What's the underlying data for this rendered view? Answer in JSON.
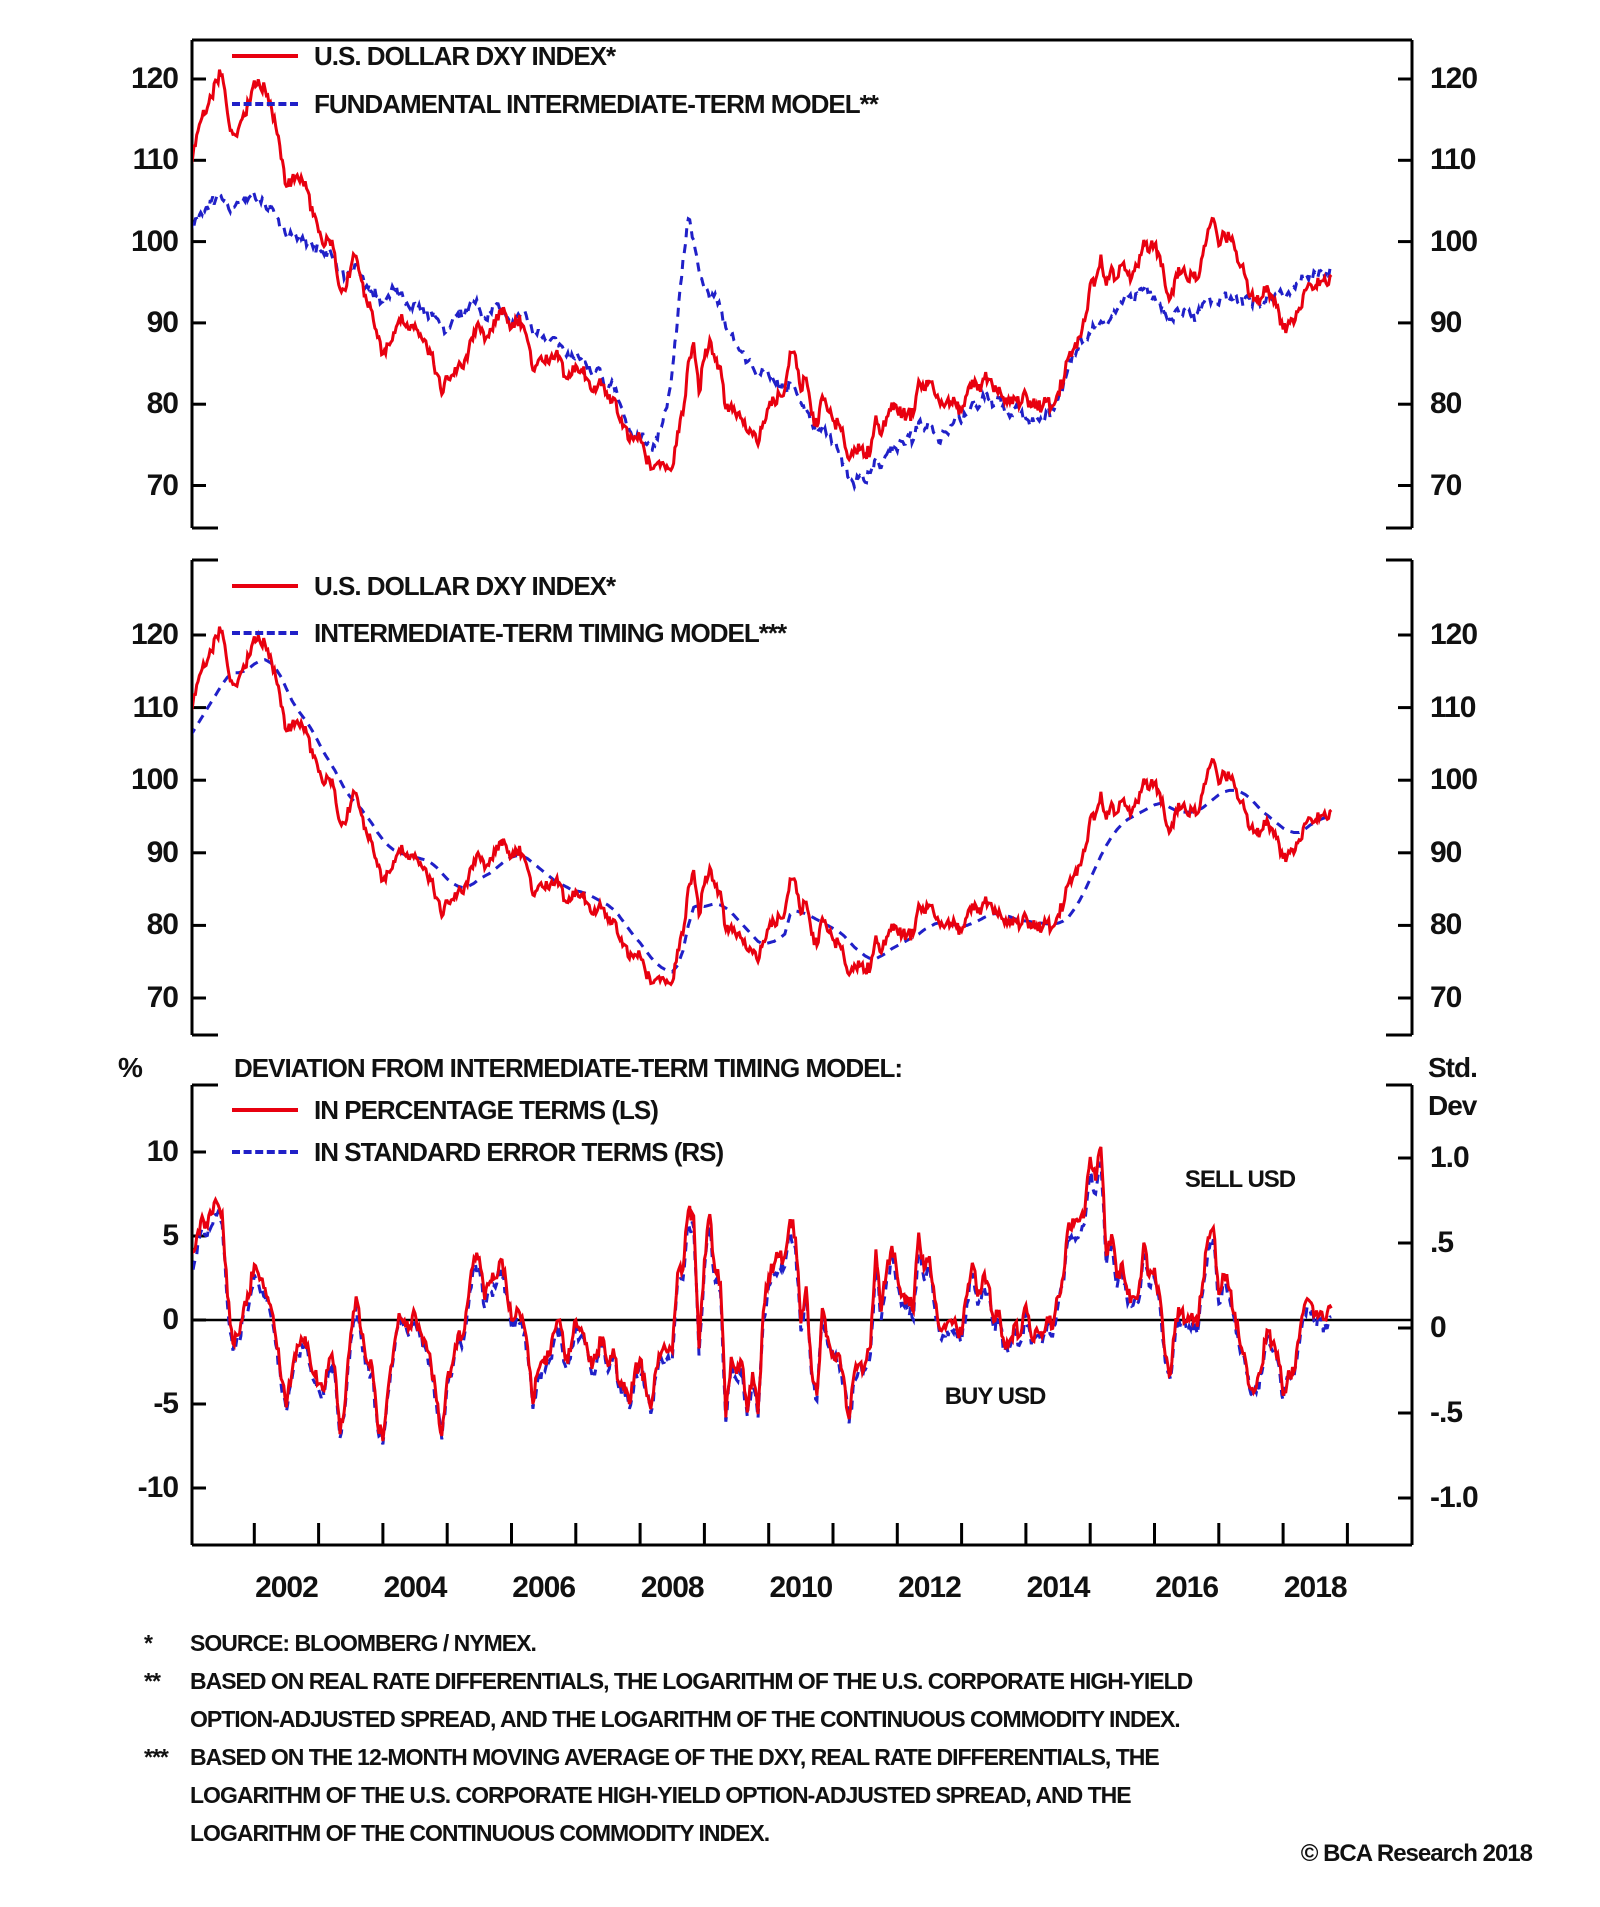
{
  "figure": {
    "colors": {
      "dxy_red": "#e8000f",
      "model_blue": "#2020c8",
      "axis_black": "#000000",
      "text_black": "#111111",
      "background": "#ffffff"
    },
    "copyright": "© BCA Research 2018",
    "footnote_lines": [
      {
        "marker": "*",
        "text": "SOURCE: BLOOMBERG / NYMEX."
      },
      {
        "marker": "**",
        "text": "BASED ON REAL RATE DIFFERENTIALS, THE LOGARITHM OF THE U.S. CORPORATE HIGH-YIELD"
      },
      {
        "marker": "",
        "text": "OPTION-ADJUSTED SPREAD, AND THE LOGARITHM OF THE CONTINUOUS COMMODITY INDEX."
      },
      {
        "marker": "***",
        "text": "BASED ON THE 12-MONTH MOVING AVERAGE OF THE DXY, REAL RATE DIFFERENTIALS, THE"
      },
      {
        "marker": "",
        "text": "LOGARITHM OF THE U.S. CORPORATE HIGH-YIELD OPTION-ADJUSTED SPREAD, AND THE"
      },
      {
        "marker": "",
        "text": "LOGARITHM OF THE CONTINUOUS COMMODITY INDEX."
      }
    ]
  },
  "x_axis": {
    "start_year": 2001.0,
    "step_months": 1,
    "tick_years": [
      2002,
      2003,
      2004,
      2005,
      2006,
      2007,
      2008,
      2009,
      2010,
      2011,
      2012,
      2013,
      2014,
      2015,
      2016,
      2017,
      2018,
      2019
    ],
    "label_years": [
      "2002",
      "2004",
      "2006",
      "2008",
      "2010",
      "2012",
      "2014",
      "2016",
      "2018"
    ]
  },
  "chart_data": [
    {
      "panel": "top",
      "type": "line",
      "legend": [
        {
          "label": "U.S. DOLLAR DXY INDEX*",
          "color": "#e8000f",
          "style": "solid"
        },
        {
          "label": "FUNDAMENTAL INTERMEDIATE-TERM MODEL**",
          "color": "#2020c8",
          "style": "dashed"
        }
      ],
      "ylim": [
        65,
        125
      ],
      "y_ticks": [
        120,
        110,
        100,
        90,
        80,
        70
      ],
      "series": [
        {
          "name": "dxy_index",
          "values": [
            109.5,
            111.8,
            114.8,
            115.8,
            117.8,
            119.8,
            120.5,
            115.8,
            113.2,
            113.8,
            115.8,
            117.0,
            119.8,
            119.2,
            118.8,
            117.2,
            114.2,
            110.2,
            106.8,
            107.5,
            108.2,
            107.5,
            106.2,
            103.2,
            101.2,
            99.4,
            100.2,
            98.6,
            94.2,
            94.0,
            96.8,
            98.2,
            95.2,
            92.6,
            91.4,
            88.2,
            86.2,
            87.4,
            88.8,
            90.4,
            89.8,
            89.2,
            89.8,
            88.6,
            87.8,
            86.2,
            83.8,
            81.2,
            83.4,
            83.6,
            84.6,
            84.4,
            86.6,
            89.0,
            89.6,
            87.8,
            89.2,
            90.0,
            91.6,
            91.0,
            89.4,
            90.2,
            89.8,
            87.8,
            84.2,
            85.4,
            85.2,
            85.0,
            85.6,
            85.8,
            83.4,
            83.4,
            84.8,
            84.2,
            83.2,
            81.6,
            82.0,
            82.4,
            80.6,
            80.8,
            78.4,
            77.4,
            75.4,
            76.0,
            75.8,
            73.6,
            72.0,
            72.6,
            72.8,
            72.4,
            72.2,
            76.6,
            78.8,
            85.2,
            87.6,
            81.4,
            85.6,
            88.0,
            85.4,
            84.6,
            79.4,
            80.0,
            78.4,
            78.2,
            76.6,
            76.2,
            75.0,
            77.8,
            79.6,
            80.4,
            81.2,
            81.8,
            86.4,
            86.0,
            81.6,
            83.2,
            78.8,
            77.2,
            81.0,
            79.2,
            78.0,
            77.6,
            75.9,
            73.2,
            74.6,
            74.4,
            73.8,
            74.2,
            78.6,
            76.2,
            78.4,
            80.2,
            79.2,
            78.8,
            79.0,
            78.8,
            82.9,
            81.8,
            82.8,
            81.2,
            79.9,
            80.0,
            80.2,
            79.8,
            79.2,
            81.2,
            83.0,
            81.7,
            83.1,
            83.1,
            81.5,
            82.1,
            80.2,
            80.2,
            80.7,
            80.0,
            81.3,
            79.7,
            80.0,
            79.5,
            80.4,
            79.8,
            81.4,
            82.7,
            85.9,
            86.9,
            88.3,
            90.3,
            94.8,
            95.3,
            98.4,
            94.6,
            96.9,
            95.5,
            97.2,
            96.0,
            96.3,
            96.9,
            100.2,
            98.7,
            99.6,
            98.2,
            94.6,
            93.1,
            95.9,
            96.1,
            95.5,
            96.0,
            95.4,
            98.3,
            101.5,
            102.8,
            99.5,
            101.1,
            100.4,
            99.0,
            96.9,
            95.6,
            93.4,
            92.7,
            93.1,
            94.6,
            93.3,
            92.1,
            89.2,
            90.2,
            89.9,
            91.8,
            94.0,
            94.8,
            94.5,
            95.1,
            94.9,
            95.9
          ]
        },
        {
          "name": "fundamental_intermediate_term_model",
          "values": [
            101.0,
            102.8,
            103.6,
            104.2,
            105.0,
            105.6,
            105.2,
            104.6,
            104.2,
            104.8,
            105.2,
            105.4,
            105.8,
            105.2,
            104.6,
            104.2,
            103.2,
            101.8,
            100.6,
            100.8,
            100.2,
            100.6,
            99.8,
            99.2,
            99.6,
            98.4,
            99.2,
            97.8,
            96.4,
            95.8,
            96.6,
            97.2,
            95.8,
            94.6,
            93.8,
            93.2,
            92.6,
            93.4,
            94.2,
            93.6,
            92.8,
            91.8,
            92.4,
            91.6,
            90.8,
            91.4,
            90.6,
            89.8,
            89.2,
            90.4,
            91.2,
            90.6,
            91.8,
            92.6,
            91.8,
            90.6,
            91.4,
            92.2,
            91.6,
            90.8,
            89.6,
            90.8,
            91.4,
            90.2,
            88.6,
            89.2,
            88.4,
            87.6,
            88.2,
            87.4,
            86.2,
            85.4,
            86.2,
            85.6,
            84.8,
            83.6,
            84.4,
            83.2,
            81.8,
            82.6,
            80.4,
            78.6,
            76.8,
            75.6,
            76.4,
            75.2,
            74.4,
            75.8,
            77.2,
            79.6,
            84.2,
            90.5,
            97.8,
            102.8,
            100.2,
            96.4,
            94.2,
            92.8,
            93.6,
            91.8,
            89.4,
            88.6,
            87.2,
            86.4,
            85.2,
            84.6,
            83.4,
            84.2,
            83.6,
            82.8,
            82.2,
            81.4,
            82.6,
            81.8,
            80.2,
            79.4,
            77.8,
            76.4,
            77.2,
            76.6,
            75.4,
            74.2,
            72.6,
            70.8,
            69.8,
            71.2,
            70.4,
            71.6,
            73.4,
            72.2,
            73.8,
            74.6,
            74.2,
            75.4,
            76.2,
            75.6,
            77.8,
            76.8,
            77.6,
            76.4,
            75.2,
            76.6,
            77.4,
            78.2,
            77.6,
            78.8,
            80.2,
            79.4,
            81.2,
            80.6,
            79.8,
            80.8,
            79.2,
            78.4,
            79.6,
            78.8,
            78.2,
            77.6,
            78.4,
            77.8,
            78.8,
            79.4,
            80.6,
            82.4,
            84.8,
            86.2,
            87.4,
            88.2,
            88.6,
            89.4,
            90.2,
            89.6,
            90.8,
            91.6,
            92.4,
            93.2,
            92.6,
            93.4,
            94.2,
            93.8,
            93.2,
            92.4,
            91.2,
            90.4,
            91.6,
            90.8,
            91.4,
            90.6,
            91.2,
            92.4,
            93.2,
            92.6,
            92.2,
            93.4,
            92.8,
            93.6,
            92.6,
            93.2,
            92.4,
            93.0,
            92.2,
            93.4,
            92.8,
            93.6,
            93.2,
            93.8,
            94.4,
            94.8,
            95.4,
            96.0,
            96.2,
            96.4,
            96.0,
            96.6
          ]
        }
      ]
    },
    {
      "panel": "middle",
      "type": "line",
      "legend": [
        {
          "label": "U.S. DOLLAR DXY INDEX*",
          "color": "#e8000f",
          "style": "solid"
        },
        {
          "label": "INTERMEDIATE-TERM TIMING MODEL***",
          "color": "#2020c8",
          "style": "dashed"
        }
      ],
      "ylim": [
        65,
        130
      ],
      "y_ticks": [
        120,
        110,
        100,
        90,
        80,
        70
      ],
      "series": [
        {
          "name": "dxy_index",
          "ref_panel": 0,
          "ref_series": 0
        },
        {
          "name": "intermediate_term_timing_model",
          "values": [
            106.0,
            107.2,
            108.4,
            109.6,
            110.8,
            112.0,
            113.2,
            114.2,
            114.8,
            114.8,
            115.0,
            115.4,
            116.0,
            116.4,
            116.6,
            116.2,
            115.4,
            114.2,
            112.6,
            111.0,
            109.8,
            108.8,
            107.8,
            106.6,
            105.2,
            103.8,
            102.6,
            101.4,
            100.0,
            98.6,
            97.6,
            96.8,
            96.0,
            95.0,
            94.0,
            92.8,
            91.8,
            91.0,
            90.4,
            90.0,
            89.8,
            89.6,
            89.4,
            89.2,
            89.0,
            88.6,
            88.0,
            87.2,
            86.4,
            85.8,
            85.4,
            85.2,
            85.4,
            85.8,
            86.4,
            86.8,
            87.2,
            87.8,
            88.4,
            89.0,
            89.4,
            89.6,
            89.6,
            89.2,
            88.6,
            88.0,
            87.4,
            86.8,
            86.2,
            85.8,
            85.4,
            85.0,
            84.8,
            84.6,
            84.4,
            84.0,
            83.6,
            83.2,
            82.8,
            82.2,
            81.4,
            80.4,
            79.4,
            78.4,
            77.6,
            76.6,
            75.6,
            74.8,
            74.2,
            73.8,
            73.6,
            74.5,
            76.5,
            80.0,
            82.5,
            82.8,
            82.6,
            82.8,
            83.0,
            82.8,
            82.4,
            81.8,
            81.0,
            80.2,
            79.4,
            78.6,
            77.8,
            77.4,
            77.6,
            77.8,
            78.2,
            78.8,
            81.5,
            82.0,
            81.8,
            81.6,
            81.2,
            80.8,
            80.4,
            80.0,
            79.6,
            79.2,
            78.6,
            77.8,
            77.0,
            76.4,
            75.8,
            75.4,
            75.4,
            75.8,
            76.2,
            76.8,
            77.2,
            77.6,
            78.0,
            78.4,
            78.8,
            79.4,
            79.8,
            80.2,
            80.4,
            80.4,
            80.2,
            80.0,
            79.9,
            80.0,
            80.3,
            80.6,
            81.0,
            81.4,
            81.6,
            81.6,
            81.4,
            81.2,
            80.9,
            80.7,
            80.6,
            80.5,
            80.4,
            80.3,
            80.2,
            80.2,
            80.3,
            80.6,
            81.2,
            82.2,
            83.4,
            84.8,
            86.4,
            88.0,
            89.6,
            91.0,
            92.2,
            93.2,
            94.0,
            94.6,
            95.0,
            95.4,
            95.8,
            96.2,
            96.6,
            96.8,
            96.6,
            96.2,
            95.8,
            95.6,
            95.6,
            95.6,
            95.8,
            96.2,
            96.8,
            97.4,
            98.0,
            98.4,
            98.6,
            98.6,
            98.4,
            98.0,
            97.4,
            96.6,
            95.8,
            95.2,
            94.6,
            94.0,
            93.4,
            93.0,
            92.8,
            92.8,
            93.2,
            93.8,
            94.2,
            94.6,
            94.9,
            95.2
          ]
        }
      ]
    },
    {
      "panel": "bottom",
      "type": "line",
      "legend_title": "DEVIATION FROM INTERMEDIATE-TERM TIMING MODEL:",
      "legend": [
        {
          "label": "IN PERCENTAGE TERMS (LS)",
          "color": "#e8000f",
          "style": "solid"
        },
        {
          "label": "IN STANDARD ERROR TERMS (RS)",
          "color": "#2020c8",
          "style": "dashed"
        }
      ],
      "left_axis": {
        "unit": "%",
        "ticks": [
          10,
          5,
          0,
          -5,
          -10
        ],
        "ylim": [
          -13,
          14
        ]
      },
      "right_axis": {
        "unit_line1": "Std.",
        "unit_line2": "Dev",
        "tick_labels": [
          "1.0",
          ".5",
          "0",
          "-.5",
          "-1.0"
        ],
        "tick_values": [
          1.0,
          0.5,
          0,
          -0.5,
          -1.0
        ]
      },
      "annotations": [
        {
          "text": "SELL USD",
          "position": "upper-right"
        },
        {
          "text": "BUY USD",
          "position": "lower-middle"
        }
      ],
      "zero_line": true,
      "series": [
        {
          "name": "deviation_percent",
          "values": [
            3.3,
            4.3,
            5.9,
            5.7,
            6.3,
            7.0,
            6.4,
            1.4,
            -1.4,
            -0.9,
            0.7,
            1.4,
            3.3,
            2.4,
            1.9,
            0.9,
            -1.0,
            -3.5,
            -5.2,
            -3.2,
            -1.5,
            -1.2,
            -1.5,
            -3.2,
            -3.8,
            -4.2,
            -2.3,
            -2.8,
            -6.8,
            -4.7,
            -0.8,
            1.4,
            -0.8,
            -2.5,
            -2.8,
            -6.2,
            -7.2,
            -4.0,
            -1.8,
            0.4,
            0.0,
            -0.4,
            0.4,
            -0.7,
            -1.3,
            -2.7,
            -4.8,
            -6.9,
            -3.5,
            -2.6,
            -0.9,
            -0.9,
            1.4,
            3.7,
            3.7,
            1.2,
            2.3,
            2.5,
            3.6,
            2.2,
            0.0,
            0.7,
            0.2,
            -1.6,
            -5.0,
            -3.0,
            -2.5,
            -2.1,
            -0.7,
            0.0,
            -2.3,
            -1.9,
            0.0,
            -0.5,
            -1.4,
            -2.9,
            -1.9,
            -1.0,
            -2.7,
            -1.7,
            -3.7,
            -3.7,
            -5.0,
            -3.1,
            -2.3,
            -3.9,
            -5.3,
            -2.9,
            -1.9,
            -1.9,
            -1.9,
            2.8,
            3.0,
            6.5,
            6.2,
            -1.7,
            3.6,
            6.3,
            2.9,
            2.2,
            -5.8,
            -2.2,
            -3.2,
            -2.5,
            -5.5,
            -3.1,
            -5.6,
            0.5,
            2.6,
            3.3,
            3.8,
            3.8,
            6.0,
            4.9,
            -0.2,
            2.0,
            -3.0,
            -4.5,
            0.7,
            -1.0,
            -2.0,
            -2.0,
            -3.4,
            -5.9,
            -3.1,
            -2.6,
            -2.6,
            -1.6,
            4.2,
            0.5,
            2.9,
            4.4,
            2.6,
            1.5,
            1.3,
            0.5,
            5.2,
            3.0,
            3.8,
            1.2,
            -0.6,
            -0.5,
            0.0,
            -0.3,
            -0.9,
            1.5,
            3.4,
            1.4,
            2.6,
            2.1,
            -0.1,
            0.6,
            -1.5,
            -1.2,
            -0.2,
            -0.9,
            0.9,
            -1.0,
            -0.5,
            -1.0,
            0.2,
            -0.5,
            1.4,
            2.6,
            5.8,
            5.7,
            5.9,
            6.5,
            9.7,
            8.3,
            10.3,
            3.9,
            5.1,
            2.5,
            3.4,
            1.5,
            1.4,
            1.6,
            4.6,
            2.6,
            3.1,
            1.4,
            -2.1,
            -3.2,
            0.1,
            0.5,
            -0.1,
            0.4,
            -0.4,
            2.2,
            4.9,
            5.5,
            1.5,
            2.7,
            1.8,
            0.4,
            -1.5,
            -2.4,
            -4.1,
            -4.0,
            -2.8,
            -0.6,
            -1.4,
            -2.0,
            -4.5,
            -3.0,
            -3.1,
            -1.1,
            0.9,
            1.1,
            0.3,
            0.5,
            0.0,
            0.7
          ]
        },
        {
          "name": "deviation_standard_error",
          "derived_from": "deviation_percent",
          "scale_std_per_pct": 0.095
        }
      ]
    }
  ]
}
